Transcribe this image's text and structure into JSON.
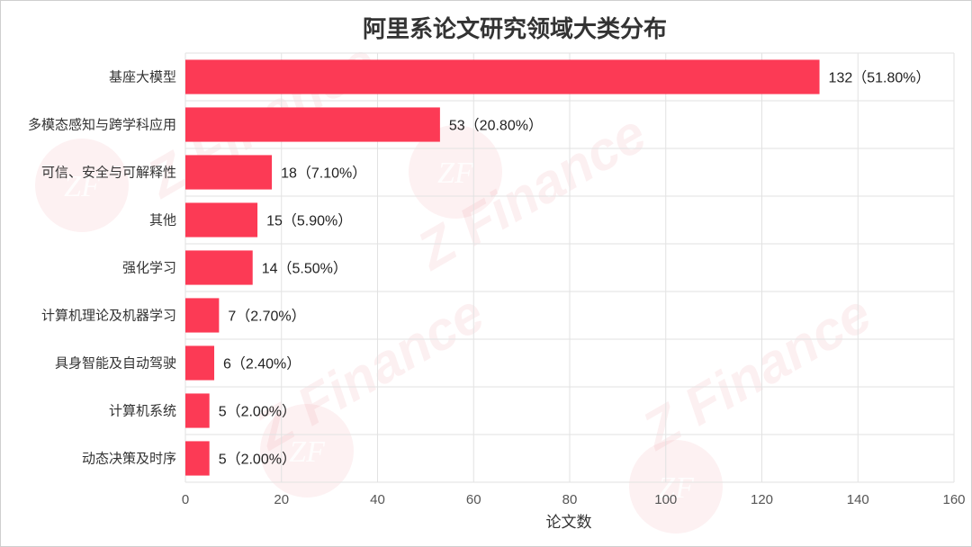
{
  "colors": {
    "bar": "#fc3a55",
    "grid": "#e2e2e2",
    "watermark": "#e23a4a"
  },
  "watermark": {
    "brand": "Z Finance",
    "logo": "ZF"
  },
  "chart_data": {
    "type": "bar",
    "orientation": "horizontal",
    "title": "阿里系论文研究领域大类分布",
    "xlabel": "论文数",
    "ylabel": "",
    "xlim": [
      0,
      160
    ],
    "xticks": [
      0,
      20,
      40,
      60,
      80,
      100,
      120,
      140,
      160
    ],
    "grid": true,
    "categories": [
      "基座大模型",
      "多模态感知与跨学科应用",
      "可信、安全与可解释性",
      "其他",
      "强化学习",
      "计算机理论及机器学习",
      "具身智能及自动驾驶",
      "计算机系统",
      "动态决策及时序"
    ],
    "values": [
      132,
      53,
      18,
      15,
      14,
      7,
      6,
      5,
      5
    ],
    "data_labels": [
      "132（51.80%）",
      "53（20.80%）",
      "18（7.10%）",
      "15（5.90%）",
      "14（5.50%）",
      "7（2.70%）",
      "6（2.40%）",
      "5（2.00%）",
      "5（2.00%）"
    ]
  }
}
